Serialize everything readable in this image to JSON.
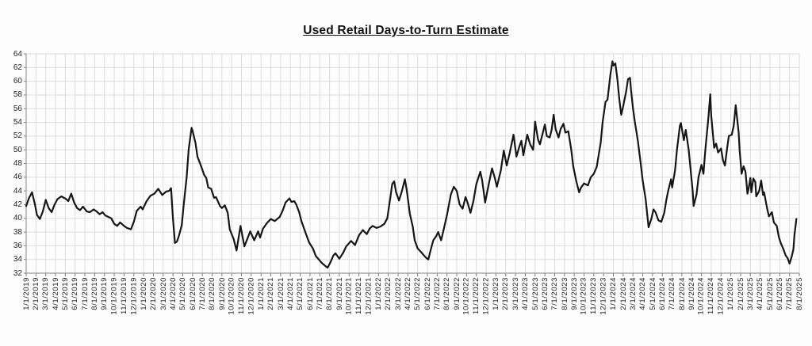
{
  "chart_data": {
    "type": "line",
    "title": "Used Retail Days-to-Turn Estimate",
    "xlabel": "",
    "ylabel": "",
    "grid": true,
    "legend": false,
    "line_color": "#161616",
    "grid_color": "#dcdcdc",
    "axis_color": "#9a9a9a",
    "tick_color": "#777777",
    "y_axis": {
      "min": 32,
      "max": 64,
      "step": 2,
      "labels": [
        64,
        62,
        60,
        58,
        56,
        54,
        52,
        50,
        48,
        46,
        44,
        42,
        40,
        38,
        36,
        34,
        32
      ]
    },
    "x_axis": {
      "interval": "monthly",
      "start_label": "1/1/2019",
      "end_label": "8/1/2025",
      "labels": [
        "1/1/2019",
        "2/1/2019",
        "3/1/2019",
        "4/1/2019",
        "5/1/2019",
        "6/1/2019",
        "7/1/2019",
        "8/1/2019",
        "9/1/2019",
        "10/1/2019",
        "11/1/2019",
        "12/1/2019",
        "1/1/2020",
        "2/1/2020",
        "3/1/2020",
        "4/1/2020",
        "5/1/2020",
        "6/1/2020",
        "7/1/2020",
        "8/1/2020",
        "9/1/2020",
        "10/1/2020",
        "11/1/2020",
        "12/1/2020",
        "1/1/2021",
        "2/1/2021",
        "3/1/2021",
        "4/1/2021",
        "5/1/2021",
        "6/1/2021",
        "7/1/2021",
        "8/1/2021",
        "9/1/2021",
        "10/1/2021",
        "11/1/2021",
        "12/1/2021",
        "1/1/2022",
        "2/1/2022",
        "3/1/2022",
        "4/1/2022",
        "5/1/2022",
        "6/1/2022",
        "7/1/2022",
        "8/1/2022",
        "9/1/2022",
        "10/1/2022",
        "11/1/2022",
        "12/1/2022",
        "1/1/2023",
        "2/1/2023",
        "3/1/2023",
        "4/1/2023",
        "5/1/2023",
        "6/1/2023",
        "7/1/2023",
        "8/1/2023",
        "9/1/2023",
        "10/1/2023",
        "11/1/2023",
        "12/1/2023",
        "1/1/2024",
        "2/1/2024",
        "3/1/2024",
        "4/1/2024",
        "5/1/2024",
        "6/1/2024",
        "7/1/2024",
        "8/1/2024",
        "9/1/2024",
        "10/1/2024",
        "11/1/2024",
        "12/1/2024",
        "1/1/2025",
        "2/1/2025",
        "3/1/2025",
        "4/1/2025",
        "5/1/2025",
        "6/1/2025",
        "7/1/2025",
        "8/1/2025"
      ]
    },
    "series": [
      {
        "name": "Used Retail Days-to-Turn Estimate",
        "points": [
          [
            0,
            41.8
          ],
          [
            0.3,
            43.0
          ],
          [
            0.6,
            43.8
          ],
          [
            0.9,
            42.0
          ],
          [
            1.1,
            40.5
          ],
          [
            1.4,
            39.9
          ],
          [
            1.7,
            41.0
          ],
          [
            2.0,
            42.7
          ],
          [
            2.3,
            41.5
          ],
          [
            2.6,
            40.9
          ],
          [
            2.9,
            42.0
          ],
          [
            3.2,
            42.8
          ],
          [
            3.6,
            43.2
          ],
          [
            4.1,
            42.8
          ],
          [
            4.3,
            42.5
          ],
          [
            4.6,
            43.6
          ],
          [
            4.9,
            42.3
          ],
          [
            5.2,
            41.5
          ],
          [
            5.5,
            41.2
          ],
          [
            5.8,
            41.7
          ],
          [
            6.2,
            41.0
          ],
          [
            6.5,
            40.9
          ],
          [
            6.9,
            41.3
          ],
          [
            7.2,
            41.0
          ],
          [
            7.5,
            40.6
          ],
          [
            7.8,
            40.9
          ],
          [
            8.1,
            40.4
          ],
          [
            8.4,
            40.2
          ],
          [
            8.7,
            40.0
          ],
          [
            9.0,
            39.2
          ],
          [
            9.3,
            38.9
          ],
          [
            9.6,
            39.4
          ],
          [
            10.0,
            38.9
          ],
          [
            10.3,
            38.6
          ],
          [
            10.7,
            38.4
          ],
          [
            11.0,
            39.5
          ],
          [
            11.3,
            41.1
          ],
          [
            11.7,
            41.7
          ],
          [
            11.9,
            41.3
          ],
          [
            12.3,
            42.5
          ],
          [
            12.7,
            43.3
          ],
          [
            13.1,
            43.6
          ],
          [
            13.5,
            44.3
          ],
          [
            13.9,
            43.4
          ],
          [
            14.3,
            43.9
          ],
          [
            14.6,
            44.0
          ],
          [
            14.8,
            44.4
          ],
          [
            15.0,
            40.0
          ],
          [
            15.2,
            36.4
          ],
          [
            15.4,
            36.6
          ],
          [
            15.6,
            37.4
          ],
          [
            15.9,
            39.0
          ],
          [
            16.1,
            42.0
          ],
          [
            16.4,
            46.0
          ],
          [
            16.6,
            50.0
          ],
          [
            16.9,
            53.2
          ],
          [
            17.0,
            52.8
          ],
          [
            17.3,
            51.0
          ],
          [
            17.5,
            49.0
          ],
          [
            17.8,
            47.9
          ],
          [
            18.2,
            46.3
          ],
          [
            18.4,
            45.9
          ],
          [
            18.6,
            44.5
          ],
          [
            18.9,
            44.3
          ],
          [
            19.2,
            43.0
          ],
          [
            19.4,
            43.1
          ],
          [
            19.8,
            41.8
          ],
          [
            20.0,
            41.5
          ],
          [
            20.3,
            41.9
          ],
          [
            20.6,
            40.8
          ],
          [
            20.8,
            38.4
          ],
          [
            21.2,
            37.0
          ],
          [
            21.5,
            35.3
          ],
          [
            21.9,
            38.9
          ],
          [
            22.3,
            35.9
          ],
          [
            22.6,
            37.0
          ],
          [
            22.9,
            38.1
          ],
          [
            23.3,
            36.8
          ],
          [
            23.7,
            38.1
          ],
          [
            23.9,
            37.2
          ],
          [
            24.2,
            38.5
          ],
          [
            24.6,
            39.3
          ],
          [
            25.0,
            39.9
          ],
          [
            25.4,
            39.6
          ],
          [
            25.9,
            40.2
          ],
          [
            26.2,
            41.1
          ],
          [
            26.5,
            42.3
          ],
          [
            26.9,
            42.9
          ],
          [
            27.1,
            42.4
          ],
          [
            27.4,
            42.5
          ],
          [
            27.6,
            42.0
          ],
          [
            27.9,
            40.9
          ],
          [
            28.1,
            39.7
          ],
          [
            28.5,
            38.1
          ],
          [
            28.9,
            36.5
          ],
          [
            29.3,
            35.6
          ],
          [
            29.6,
            34.5
          ],
          [
            29.9,
            34.0
          ],
          [
            30.2,
            33.5
          ],
          [
            30.6,
            33.0
          ],
          [
            30.8,
            32.8
          ],
          [
            31.1,
            33.6
          ],
          [
            31.4,
            34.6
          ],
          [
            31.6,
            34.9
          ],
          [
            32.0,
            34.1
          ],
          [
            32.4,
            35.0
          ],
          [
            32.7,
            35.9
          ],
          [
            33.2,
            36.7
          ],
          [
            33.6,
            36.1
          ],
          [
            34.0,
            37.5
          ],
          [
            34.4,
            38.3
          ],
          [
            34.8,
            37.7
          ],
          [
            35.1,
            38.5
          ],
          [
            35.4,
            38.9
          ],
          [
            35.8,
            38.6
          ],
          [
            36.2,
            38.8
          ],
          [
            36.6,
            39.2
          ],
          [
            36.9,
            40.0
          ],
          [
            37.2,
            42.9
          ],
          [
            37.4,
            45.0
          ],
          [
            37.6,
            45.4
          ],
          [
            37.8,
            43.8
          ],
          [
            38.1,
            42.6
          ],
          [
            38.4,
            44.0
          ],
          [
            38.7,
            45.7
          ],
          [
            38.9,
            44.0
          ],
          [
            39.2,
            40.7
          ],
          [
            39.5,
            38.8
          ],
          [
            39.7,
            36.8
          ],
          [
            40.0,
            35.6
          ],
          [
            40.4,
            35.0
          ],
          [
            40.7,
            34.5
          ],
          [
            40.9,
            34.2
          ],
          [
            41.1,
            34.0
          ],
          [
            41.3,
            35.2
          ],
          [
            41.6,
            36.8
          ],
          [
            41.9,
            37.4
          ],
          [
            42.1,
            38.0
          ],
          [
            42.4,
            36.8
          ],
          [
            42.7,
            38.6
          ],
          [
            43.0,
            40.5
          ],
          [
            43.4,
            43.5
          ],
          [
            43.7,
            44.6
          ],
          [
            44.0,
            44.0
          ],
          [
            44.3,
            42.0
          ],
          [
            44.6,
            41.4
          ],
          [
            44.9,
            43.1
          ],
          [
            45.1,
            42.3
          ],
          [
            45.4,
            40.8
          ],
          [
            45.7,
            42.5
          ],
          [
            46.0,
            45.0
          ],
          [
            46.4,
            46.8
          ],
          [
            46.6,
            45.5
          ],
          [
            46.9,
            42.3
          ],
          [
            47.2,
            44.5
          ],
          [
            47.6,
            47.3
          ],
          [
            47.9,
            45.8
          ],
          [
            48.1,
            44.6
          ],
          [
            48.5,
            47.0
          ],
          [
            48.8,
            49.9
          ],
          [
            49.1,
            47.7
          ],
          [
            49.4,
            49.5
          ],
          [
            49.8,
            52.2
          ],
          [
            50.1,
            49.0
          ],
          [
            50.4,
            50.5
          ],
          [
            50.6,
            51.3
          ],
          [
            50.8,
            49.2
          ],
          [
            51.2,
            52.2
          ],
          [
            51.5,
            50.8
          ],
          [
            51.8,
            50.0
          ],
          [
            52.0,
            54.1
          ],
          [
            52.3,
            51.5
          ],
          [
            52.5,
            50.8
          ],
          [
            52.8,
            52.5
          ],
          [
            53.0,
            53.7
          ],
          [
            53.2,
            52.0
          ],
          [
            53.5,
            51.8
          ],
          [
            53.7,
            53.0
          ],
          [
            53.9,
            55.1
          ],
          [
            54.1,
            53.0
          ],
          [
            54.4,
            51.8
          ],
          [
            54.6,
            53.0
          ],
          [
            54.9,
            53.8
          ],
          [
            55.1,
            52.5
          ],
          [
            55.4,
            52.7
          ],
          [
            55.7,
            50.0
          ],
          [
            55.9,
            47.6
          ],
          [
            56.2,
            45.5
          ],
          [
            56.5,
            43.8
          ],
          [
            56.7,
            44.5
          ],
          [
            57.0,
            45.1
          ],
          [
            57.4,
            44.8
          ],
          [
            57.7,
            46.0
          ],
          [
            58.0,
            46.5
          ],
          [
            58.3,
            47.5
          ],
          [
            58.7,
            51.0
          ],
          [
            58.9,
            54.0
          ],
          [
            59.2,
            57.0
          ],
          [
            59.4,
            57.3
          ],
          [
            59.5,
            58.5
          ],
          [
            59.7,
            61.0
          ],
          [
            59.9,
            62.9
          ],
          [
            60.0,
            62.3
          ],
          [
            60.2,
            62.6
          ],
          [
            60.4,
            60.5
          ],
          [
            60.6,
            57.5
          ],
          [
            60.8,
            55.1
          ],
          [
            61.0,
            56.3
          ],
          [
            61.3,
            58.5
          ],
          [
            61.5,
            60.3
          ],
          [
            61.7,
            60.5
          ],
          [
            61.8,
            58.8
          ],
          [
            62.0,
            56.1
          ],
          [
            62.2,
            54.0
          ],
          [
            62.5,
            51.3
          ],
          [
            62.8,
            47.9
          ],
          [
            63.0,
            45.5
          ],
          [
            63.3,
            42.8
          ],
          [
            63.6,
            38.7
          ],
          [
            63.9,
            40.0
          ],
          [
            64.1,
            41.3
          ],
          [
            64.3,
            40.9
          ],
          [
            64.6,
            39.7
          ],
          [
            64.9,
            39.5
          ],
          [
            65.2,
            40.8
          ],
          [
            65.4,
            42.6
          ],
          [
            65.6,
            44.0
          ],
          [
            65.9,
            45.7
          ],
          [
            66.0,
            44.5
          ],
          [
            66.3,
            47.0
          ],
          [
            66.5,
            50.0
          ],
          [
            66.8,
            53.5
          ],
          [
            66.9,
            53.9
          ],
          [
            67.2,
            51.4
          ],
          [
            67.4,
            52.9
          ],
          [
            67.7,
            50.0
          ],
          [
            67.9,
            47.0
          ],
          [
            68.1,
            44.0
          ],
          [
            68.2,
            41.8
          ],
          [
            68.5,
            43.5
          ],
          [
            68.7,
            46.0
          ],
          [
            69.0,
            47.8
          ],
          [
            69.2,
            46.5
          ],
          [
            69.4,
            50.0
          ],
          [
            69.7,
            54.5
          ],
          [
            69.9,
            58.1
          ],
          [
            70.0,
            55.0
          ],
          [
            70.3,
            50.3
          ],
          [
            70.5,
            50.9
          ],
          [
            70.7,
            49.6
          ],
          [
            71.0,
            50.2
          ],
          [
            71.2,
            48.5
          ],
          [
            71.4,
            47.7
          ],
          [
            71.6,
            50.0
          ],
          [
            71.8,
            52.0
          ],
          [
            72.1,
            52.2
          ],
          [
            72.3,
            53.5
          ],
          [
            72.5,
            56.5
          ],
          [
            72.8,
            52.5
          ],
          [
            72.9,
            50.0
          ],
          [
            73.1,
            46.5
          ],
          [
            73.3,
            47.6
          ],
          [
            73.5,
            46.8
          ],
          [
            73.7,
            43.6
          ],
          [
            73.8,
            44.2
          ],
          [
            74.0,
            45.9
          ],
          [
            74.1,
            43.8
          ],
          [
            74.3,
            45.8
          ],
          [
            74.5,
            45.3
          ],
          [
            74.6,
            43.2
          ],
          [
            74.9,
            44.0
          ],
          [
            75.1,
            45.5
          ],
          [
            75.3,
            43.4
          ],
          [
            75.4,
            43.8
          ],
          [
            75.7,
            41.5
          ],
          [
            75.9,
            40.3
          ],
          [
            76.2,
            40.9
          ],
          [
            76.4,
            39.4
          ],
          [
            76.7,
            38.9
          ],
          [
            76.9,
            37.3
          ],
          [
            77.1,
            36.4
          ],
          [
            77.4,
            35.4
          ],
          [
            77.6,
            34.6
          ],
          [
            77.8,
            34.2
          ],
          [
            78.0,
            33.4
          ],
          [
            78.2,
            34.3
          ],
          [
            78.4,
            35.5
          ],
          [
            78.5,
            37.5
          ],
          [
            78.7,
            39.9
          ]
        ]
      }
    ]
  }
}
